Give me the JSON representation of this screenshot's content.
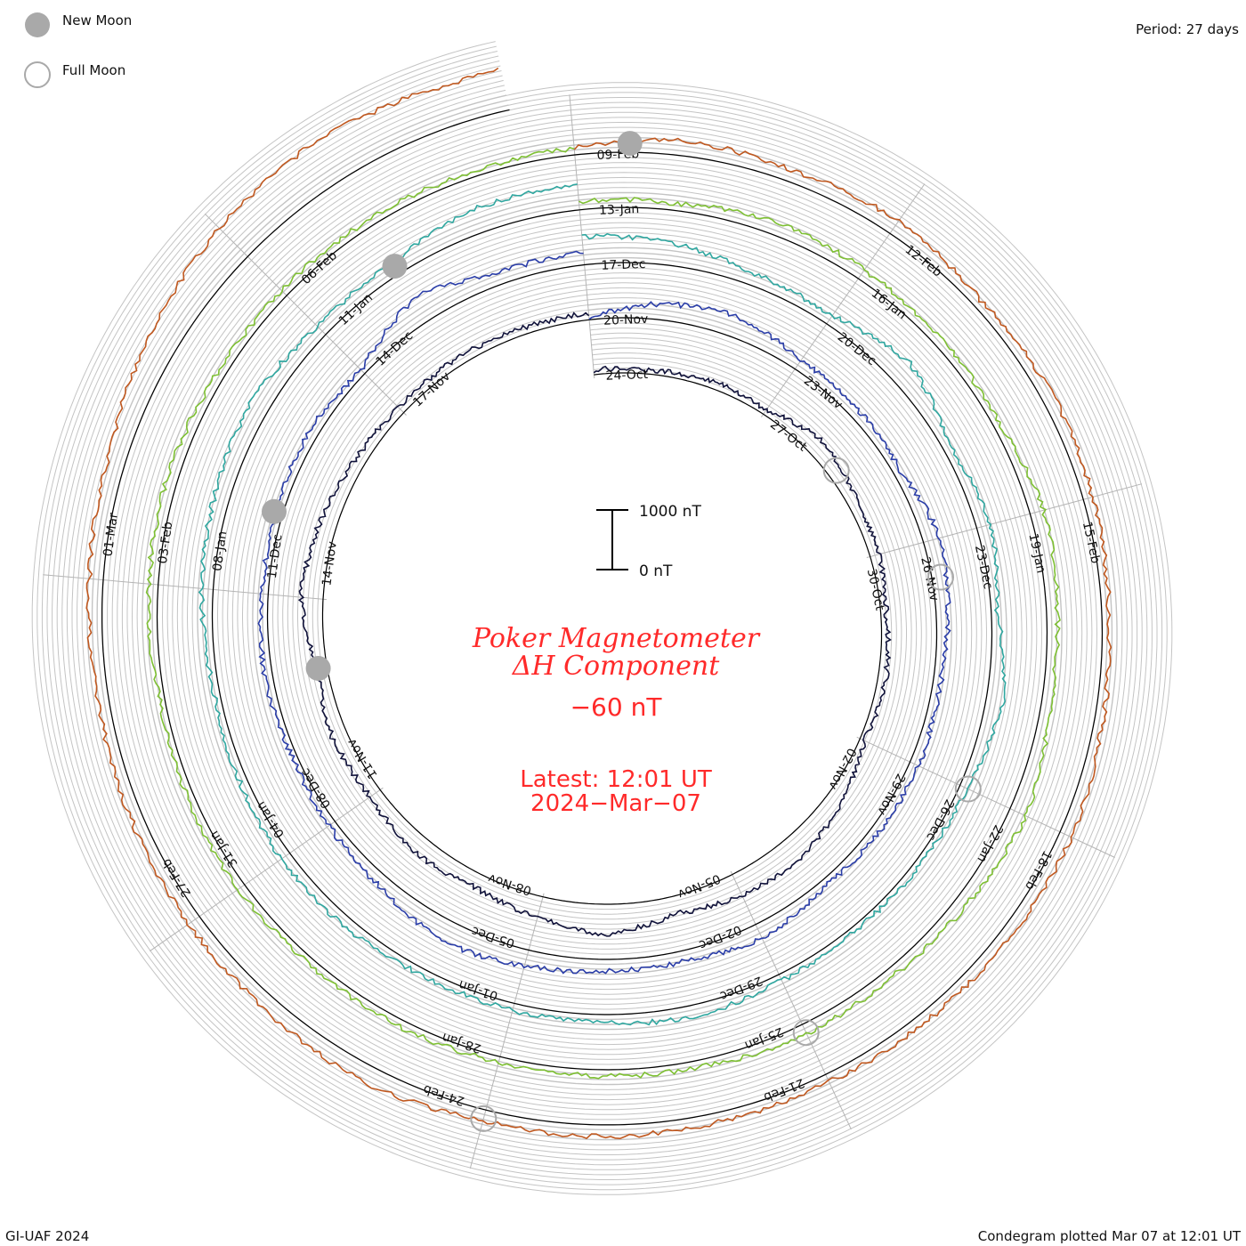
{
  "legend": {
    "new_moon_label": "New Moon",
    "full_moon_label": "Full Moon",
    "new_moon_color": "#a9a9a9",
    "full_moon_color": "#a9a9a9"
  },
  "period_text": "Period: 27 days",
  "scale_bar": {
    "top_label": "1000 nT",
    "bottom_label": "0 nT"
  },
  "title_line1": "Poker Magnetometer",
  "title_line2": "ΔH Component",
  "current_value": "−60 nT",
  "latest_line1": "Latest: 12:01 UT",
  "latest_line2": "2024−Mar−07",
  "footer_left": "GI-UAF 2024",
  "footer_right": "Condegram plotted Mar 07 at 12:01 UT",
  "colors": {
    "accent_red": "#ff2a2a",
    "grid": "#bfbfbf",
    "baseline": "#000000"
  },
  "chart_data": {
    "type": "line",
    "title": "Poker Magnetometer ΔH Component",
    "period_days": 27,
    "units": "nT",
    "scale_bar_nT": [
      0,
      1000
    ],
    "latest_value_nT": -60,
    "series": [
      {
        "start": "24-Oct",
        "labels": [
          "24-Oct",
          "27-Oct",
          "30-Oct",
          "02-Nov",
          "05-Nov",
          "08-Nov",
          "11-Nov",
          "14-Nov",
          "17-Nov"
        ],
        "color": "#10123a",
        "values": [
          80,
          60,
          120,
          90,
          300,
          180,
          150,
          90,
          140,
          80,
          260,
          420,
          380,
          300,
          520,
          360,
          240,
          310,
          200,
          260,
          160,
          380,
          300,
          180,
          120,
          140,
          110
        ]
      },
      {
        "start": "20-Nov",
        "labels": [
          "20-Nov",
          "23-Nov",
          "26-Nov",
          "29-Nov",
          "02-Dec",
          "05-Dec",
          "08-Dec",
          "11-Dec",
          "14-Dec"
        ],
        "color": "#2a3da8",
        "values": [
          40,
          280,
          360,
          180,
          160,
          120,
          300,
          200,
          120,
          160,
          140,
          110,
          260,
          180,
          200,
          280,
          380,
          200,
          120,
          80,
          140,
          100,
          120,
          160,
          80,
          460,
          200
        ]
      },
      {
        "start": "17-Dec",
        "labels": [
          "17-Dec",
          "20-Dec",
          "23-Dec",
          "26-Dec",
          "29-Dec",
          "01-Jan",
          "04-Jan",
          "08-Jan",
          "11-Jan"
        ],
        "color": "#2fa7a0",
        "values": [
          480,
          380,
          200,
          160,
          420,
          120,
          240,
          100,
          300,
          120,
          90,
          80,
          110,
          200,
          140,
          120,
          100,
          160,
          180,
          120,
          90,
          200,
          260,
          340,
          180,
          220,
          420
        ]
      },
      {
        "start": "13-Jan",
        "labels": [
          "13-Jan",
          "16-Jan",
          "19-Jan",
          "22-Jan",
          "25-Jan",
          "28-Jan",
          "31-Jan",
          "03-Feb",
          "06-Feb"
        ],
        "color": "#7ec033",
        "values": [
          140,
          120,
          220,
          180,
          140,
          110,
          240,
          180,
          160,
          300,
          200,
          140,
          180,
          120,
          110,
          90,
          120,
          100,
          130,
          110,
          90,
          160,
          180,
          140,
          120,
          110,
          100
        ]
      },
      {
        "start": "09-Feb",
        "labels": [
          "09-Feb",
          "12-Feb",
          "15-Feb",
          "18-Feb",
          "21-Feb",
          "24-Feb",
          "27-Feb",
          "01-Mar"
        ],
        "color": "#c0581f",
        "values": [
          120,
          260,
          200,
          260,
          140,
          200,
          160,
          120,
          140,
          220,
          180,
          160,
          140,
          160,
          200,
          180,
          300,
          240,
          220,
          200,
          180,
          240,
          300,
          520,
          680,
          780,
          700
        ],
        "partial_days": 26.5
      }
    ],
    "new_moon_dates": [
      "13-Nov",
      "12-Dec",
      "11-Jan",
      "09-Feb"
    ],
    "full_moon_dates": [
      "28-Oct",
      "27-Nov",
      "26-Dec",
      "25-Jan",
      "24-Feb"
    ]
  }
}
